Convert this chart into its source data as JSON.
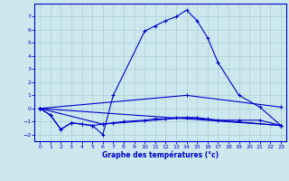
{
  "title": "Graphe des températures (°c)",
  "bg_color": "#cce8ee",
  "grid_color": "#aaccd4",
  "line_color": "#0000cc",
  "xlim": [
    -0.5,
    23.5
  ],
  "ylim": [
    -2.5,
    8.0
  ],
  "yticks": [
    -2,
    -1,
    0,
    1,
    2,
    3,
    4,
    5,
    6,
    7
  ],
  "xticks": [
    0,
    1,
    2,
    3,
    4,
    5,
    6,
    7,
    8,
    9,
    10,
    11,
    12,
    13,
    14,
    15,
    16,
    17,
    18,
    19,
    20,
    21,
    22,
    23
  ],
  "curve1_x": [
    0,
    1,
    2,
    3,
    4,
    5,
    6,
    7,
    10,
    11,
    12,
    13,
    14,
    15,
    16,
    17,
    19,
    21,
    23
  ],
  "curve1_y": [
    0.0,
    -0.5,
    -1.6,
    -1.1,
    -1.2,
    -1.3,
    -2.0,
    1.0,
    5.9,
    6.3,
    6.7,
    7.0,
    7.5,
    6.7,
    5.4,
    3.5,
    1.0,
    0.1,
    -1.3
  ],
  "curve2_x": [
    0,
    1,
    2,
    3,
    4,
    5,
    6,
    7,
    8,
    10,
    11,
    12,
    13,
    14,
    15,
    16,
    17,
    19,
    21,
    23
  ],
  "curve2_y": [
    0.0,
    -0.5,
    -1.6,
    -1.1,
    -1.2,
    -1.3,
    -1.2,
    -1.1,
    -1.0,
    -0.9,
    -0.8,
    -0.8,
    -0.7,
    -0.7,
    -0.7,
    -0.8,
    -0.9,
    -0.9,
    -0.9,
    -1.3
  ],
  "line1_x": [
    0,
    23
  ],
  "line1_y": [
    0.0,
    -1.3
  ],
  "line2_x": [
    0,
    6,
    14,
    23
  ],
  "line2_y": [
    0.0,
    -1.2,
    -0.7,
    -1.3
  ],
  "line3_x": [
    0,
    14,
    23
  ],
  "line3_y": [
    0.0,
    1.0,
    0.1
  ]
}
